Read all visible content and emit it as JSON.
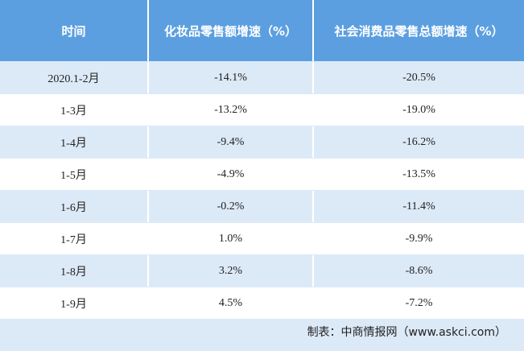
{
  "table": {
    "columns": [
      "时间",
      "化妆品零售额增速（%）",
      "社会消费品零售总额增速（%）"
    ],
    "rows": [
      [
        "2020.1-2月",
        "-14.1%",
        "-20.5%"
      ],
      [
        "1-3月",
        "-13.2%",
        "-19.0%"
      ],
      [
        "1-4月",
        "-9.4%",
        "-16.2%"
      ],
      [
        "1-5月",
        "-4.9%",
        "-13.5%"
      ],
      [
        "1-6月",
        "-0.2%",
        "-11.4%"
      ],
      [
        "1-7月",
        "1.0%",
        "-9.9%"
      ],
      [
        "1-8月",
        "3.2%",
        "-8.6%"
      ],
      [
        "1-9月",
        "4.5%",
        "-7.2%"
      ]
    ]
  },
  "footer": {
    "source": "制表：中商情报网（www.askci.com）"
  }
}
